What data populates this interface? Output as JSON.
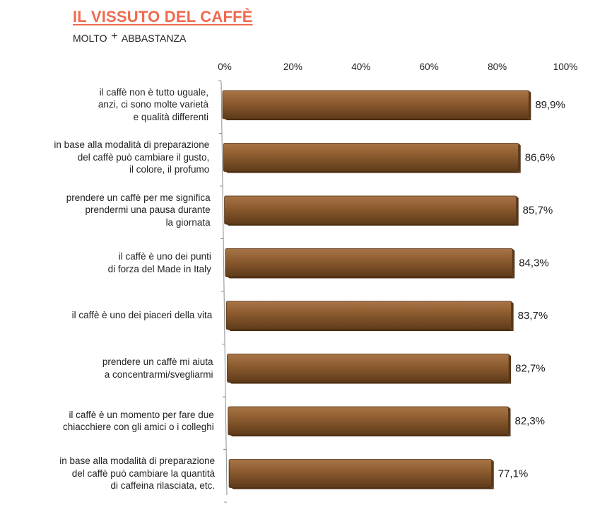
{
  "header": {
    "title": "IL VISSUTO DEL CAFFÈ",
    "subtitle_part1": "MOLTO",
    "subtitle_plus": "+",
    "subtitle_part2": "ABBASTANZA"
  },
  "chart_data": {
    "type": "bar",
    "orientation": "horizontal",
    "title": "IL VISSUTO DEL CAFFÈ",
    "subtitle": "MOLTO + ABBASTANZA",
    "xlabel": "",
    "ylabel": "",
    "xlim": [
      0,
      100
    ],
    "ticks": [
      "0%",
      "20%",
      "40%",
      "60%",
      "80%",
      "100%"
    ],
    "tick_values": [
      0,
      20,
      40,
      60,
      80,
      100
    ],
    "grid": false,
    "bar_color": "#8a5a2e",
    "categories": [
      "il caffè non è tutto uguale,\nanzi, ci sono molte varietà\ne qualità differenti",
      "in base alla modalità di preparazione\ndel caffè può cambiare il gusto,\nil colore, il profumo",
      "prendere un caffè per me significa\nprendermi una pausa durante\nla giornata",
      "il caffè è uno dei punti\ndi forza del Made in Italy",
      "il caffè è uno dei piaceri della vita",
      "prendere un caffè mi aiuta\na concentrarmi/svegliarmi",
      "il caffè è un momento per fare due\nchiacchiere con gli amici o i colleghi",
      "in base alla modalità di preparazione\ndel caffè può cambiare la quantità\ndi caffeina rilasciata, etc."
    ],
    "values": [
      89.9,
      86.6,
      85.7,
      84.3,
      83.7,
      82.7,
      82.3,
      77.1
    ],
    "value_labels": [
      "89,9%",
      "86,6%",
      "85,7%",
      "84,3%",
      "83,7%",
      "82,7%",
      "82,3%",
      "77,1%"
    ]
  }
}
